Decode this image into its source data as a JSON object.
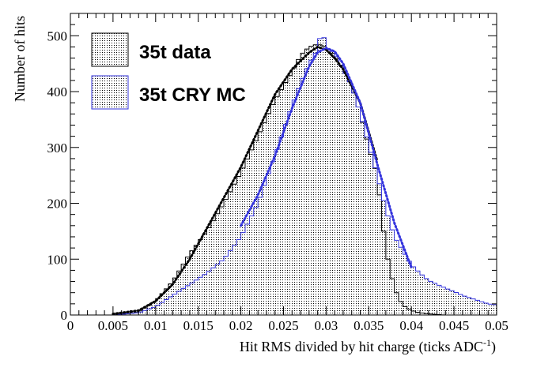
{
  "chart_data": {
    "type": "histogram",
    "xlabel": "Hit RMS divided by hit charge (ticks ADC",
    "xlabel_sup": "-1",
    "xlabel_end": ")",
    "ylabel": "Number of hits",
    "xlim": [
      0,
      0.05
    ],
    "ylim": [
      0,
      540
    ],
    "x_ticks": [
      "0",
      "0.005",
      "0.01",
      "0.015",
      "0.02",
      "0.025",
      "0.03",
      "0.035",
      "0.04",
      "0.045",
      "0.05"
    ],
    "y_ticks": [
      "0",
      "100",
      "200",
      "300",
      "400",
      "500"
    ],
    "bin_width": 0.0005,
    "legend_position": "top-left",
    "series": [
      {
        "name": "35t data",
        "color": "#000000",
        "x": [
          0.0,
          0.005,
          0.008,
          0.01,
          0.012,
          0.014,
          0.016,
          0.018,
          0.02,
          0.022,
          0.024,
          0.026,
          0.027,
          0.028,
          0.029,
          0.03,
          0.031,
          0.032,
          0.033,
          0.034,
          0.035,
          0.036,
          0.0365,
          0.037,
          0.0375,
          0.038,
          0.0385,
          0.039,
          0.0395,
          0.04,
          0.041,
          0.042,
          0.043,
          0.044,
          0.045
        ],
        "y": [
          0,
          0,
          5,
          25,
          60,
          110,
          150,
          200,
          255,
          320,
          385,
          435,
          465,
          480,
          485,
          480,
          465,
          440,
          410,
          360,
          300,
          250,
          180,
          120,
          80,
          50,
          30,
          18,
          12,
          8,
          4,
          2,
          1,
          0,
          0
        ]
      },
      {
        "name": "35t CRY MC",
        "color": "#3333dd",
        "x": [
          0.0,
          0.005,
          0.008,
          0.01,
          0.012,
          0.014,
          0.016,
          0.018,
          0.02,
          0.022,
          0.024,
          0.026,
          0.027,
          0.028,
          0.029,
          0.0295,
          0.03,
          0.031,
          0.032,
          0.033,
          0.034,
          0.035,
          0.036,
          0.037,
          0.038,
          0.039,
          0.04,
          0.041,
          0.042,
          0.043,
          0.044,
          0.045,
          0.046,
          0.047,
          0.048,
          0.049,
          0.05
        ],
        "y": [
          0,
          0,
          4,
          15,
          35,
          55,
          75,
          100,
          140,
          200,
          285,
          375,
          415,
          450,
          475,
          515,
          478,
          470,
          440,
          410,
          360,
          305,
          250,
          190,
          140,
          115,
          90,
          75,
          62,
          55,
          48,
          42,
          35,
          30,
          25,
          20,
          18
        ]
      }
    ],
    "fit_curves": [
      {
        "series": "35t data",
        "color": "#000000",
        "x": [
          0.005,
          0.008,
          0.01,
          0.012,
          0.014,
          0.016,
          0.018,
          0.02,
          0.022,
          0.024,
          0.026,
          0.028,
          0.029,
          0.03,
          0.031,
          0.032,
          0.034,
          0.036
        ],
        "y": [
          2,
          8,
          25,
          55,
          100,
          155,
          210,
          265,
          330,
          395,
          440,
          470,
          480,
          475,
          460,
          440,
          380,
          275
        ]
      },
      {
        "series": "35t CRY MC",
        "color": "#3333dd",
        "x": [
          0.02,
          0.022,
          0.024,
          0.026,
          0.028,
          0.029,
          0.03,
          0.031,
          0.032,
          0.034,
          0.036,
          0.038,
          0.04
        ],
        "y": [
          160,
          215,
          285,
          370,
          445,
          470,
          478,
          472,
          450,
          380,
          270,
          165,
          85
        ]
      }
    ]
  }
}
